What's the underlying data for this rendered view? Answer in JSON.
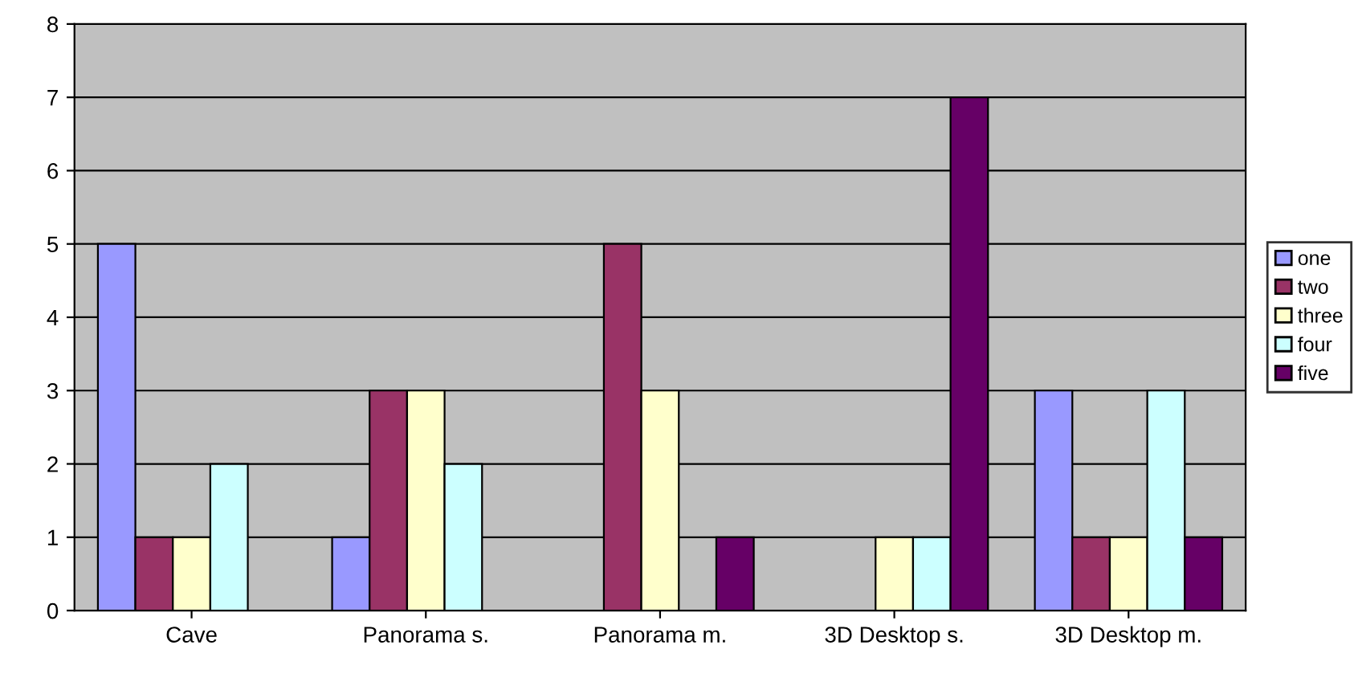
{
  "chart_data": {
    "type": "bar",
    "categories": [
      "Cave",
      "Panorama s.",
      "Panorama m.",
      "3D Desktop s.",
      "3D Desktop m."
    ],
    "series": [
      {
        "name": "one",
        "color": "#9999ff",
        "values": [
          5,
          1,
          null,
          null,
          3
        ]
      },
      {
        "name": "two",
        "color": "#993366",
        "values": [
          1,
          3,
          5,
          null,
          1
        ]
      },
      {
        "name": "three",
        "color": "#ffffcc",
        "values": [
          1,
          3,
          3,
          1,
          1
        ]
      },
      {
        "name": "four",
        "color": "#ccffff",
        "values": [
          2,
          2,
          null,
          1,
          3
        ]
      },
      {
        "name": "five",
        "color": "#660066",
        "values": [
          null,
          null,
          1,
          7,
          1
        ]
      }
    ],
    "ylim": [
      0,
      8
    ],
    "yticks": [
      0,
      1,
      2,
      3,
      4,
      5,
      6,
      7,
      8
    ],
    "grid": "y",
    "legend": "right"
  }
}
